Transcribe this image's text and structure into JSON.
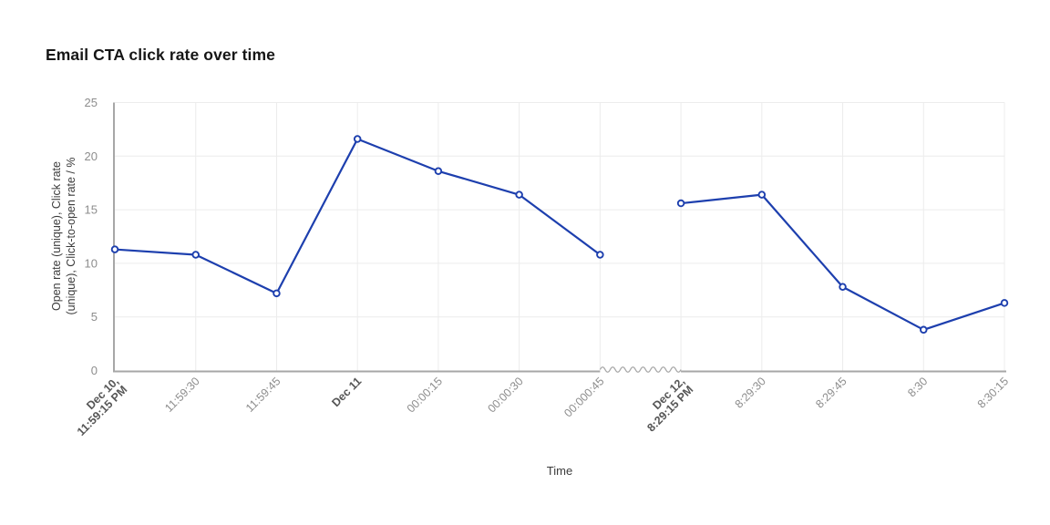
{
  "chart": {
    "title": "Email CTA click rate over time",
    "x_axis_label": "Time",
    "y_axis_label_line1": "Open rate (unique), Click rate",
    "y_axis_label_line2": "(unique), Click-to-open rate / %"
  },
  "chart_data": {
    "type": "line",
    "title": "Email CTA click rate over time",
    "xlabel": "Time",
    "ylabel": "Open rate (unique), Click rate (unique), Click-to-open rate / %",
    "ylim": [
      0,
      25
    ],
    "y_ticks": [
      0,
      5,
      10,
      15,
      20,
      25
    ],
    "grid": true,
    "legend": "none",
    "axis_break_between": [
      "00:000:45",
      "Dec 12, 8:29:15 PM"
    ],
    "gap_after_index": 6,
    "x_ticks": [
      {
        "lines": [
          "Dec 10,",
          "11:59:15 PM"
        ],
        "bold": true
      },
      {
        "lines": [
          "11:59:30"
        ],
        "bold": false
      },
      {
        "lines": [
          "11:59:45"
        ],
        "bold": false
      },
      {
        "lines": [
          "Dec 11"
        ],
        "bold": true
      },
      {
        "lines": [
          "00:00:15"
        ],
        "bold": false
      },
      {
        "lines": [
          "00:00:30"
        ],
        "bold": false
      },
      {
        "lines": [
          "00:000:45"
        ],
        "bold": false
      },
      {
        "lines": [
          "Dec 12,",
          "8:29:15 PM"
        ],
        "bold": true
      },
      {
        "lines": [
          "8:29:30"
        ],
        "bold": false
      },
      {
        "lines": [
          "8:29:45"
        ],
        "bold": false
      },
      {
        "lines": [
          "8:30"
        ],
        "bold": false
      },
      {
        "lines": [
          "8:30:15"
        ],
        "bold": false
      }
    ],
    "values": [
      11.3,
      10.8,
      7.2,
      21.6,
      18.6,
      16.4,
      10.8,
      15.6,
      16.4,
      7.8,
      3.8,
      6.3
    ],
    "marker": "open-circle"
  },
  "colors": {
    "line": "#1d3fae",
    "marker_fill": "#ffffff",
    "axis": "#a7a7a7",
    "grid": "#ececec",
    "tick_label": "#8d8d8d",
    "tick_label_bold": "#565656",
    "title": "#161616",
    "axis_title": "#3c3c3c"
  }
}
